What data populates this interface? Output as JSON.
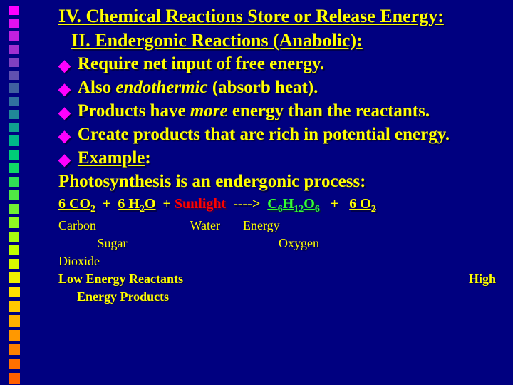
{
  "decor": {
    "count": 28,
    "base_size": 14,
    "gradient": [
      "#ff00ff",
      "#e010f0",
      "#c020e0",
      "#a030d0",
      "#8040c0",
      "#6050b0",
      "#4060a0",
      "#3070a0",
      "#208898",
      "#10a090",
      "#00b888",
      "#00cc77",
      "#10d866",
      "#30e055",
      "#50e844",
      "#70f033",
      "#90f822",
      "#a8fc10",
      "#c0ff00",
      "#d8f800",
      "#f0f000",
      "#ffe000",
      "#ffc800",
      "#ffb000",
      "#ff9800",
      "#ff8000",
      "#ff7000",
      "#ff6000"
    ]
  },
  "title": "IV. Chemical Reactions Store or Release Energy:",
  "subtitle": "II. Endergonic Reactions (Anabolic):",
  "bullets": [
    {
      "pre": "Require ",
      "plain": "net input of free energy."
    },
    {
      "pre": "Also ",
      "italic": "endothermic",
      "post": " (absorb heat)."
    },
    {
      "pre": "Products have ",
      "italic": "more",
      "post": " energy than the reactants."
    },
    {
      "pre": "Create products that are rich in potential energy."
    },
    {
      "underline": "Example",
      "post": ":"
    }
  ],
  "label": "Photosynthesis is an endergonic process:",
  "equation": {
    "r1": "6 CO",
    "r1sub": "2",
    "r2": "6 H",
    "r2sub": "2",
    "r2b": "O",
    "sunlight": "Sunlight",
    "arrow": "---->",
    "p1a": "C",
    "p1s1": "6",
    "p1b": "H",
    "p1s2": "12",
    "p1c": "O",
    "p1s3": "6",
    "p2": "6 O",
    "p2sub": "2"
  },
  "labels_row1": {
    "carbon": "Carbon",
    "water": "Water",
    "energy": "Energy"
  },
  "labels_row2": {
    "sugar": "Sugar",
    "oxygen": "Oxygen"
  },
  "labels_row3": "Dioxide",
  "low": "Low Energy Reactants",
  "high": "High",
  "ep": "Energy Products"
}
